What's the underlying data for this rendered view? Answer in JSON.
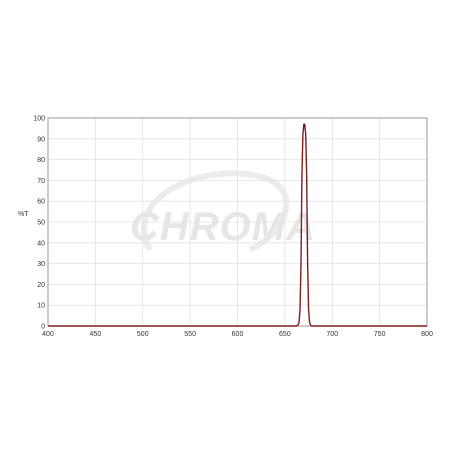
{
  "watermark": {
    "text": "CHROMA"
  },
  "chart_data": {
    "type": "line",
    "title": "",
    "xlabel": "",
    "ylabel": "%T",
    "xlim": [
      400,
      800
    ],
    "ylim": [
      0,
      100
    ],
    "xticks": [
      400,
      450,
      500,
      550,
      600,
      650,
      700,
      750,
      800
    ],
    "yticks": [
      0,
      10,
      20,
      30,
      40,
      50,
      60,
      70,
      80,
      90,
      100
    ],
    "grid": true,
    "legend": "none",
    "series": [
      {
        "color": "#7a1f1f",
        "x": [
          400,
          500,
          600,
          650,
          662,
          664,
          665,
          666,
          667,
          668,
          669,
          670,
          671,
          672,
          673,
          674,
          675,
          676,
          677,
          678,
          680,
          690,
          700,
          800
        ],
        "y": [
          0,
          0,
          0,
          0,
          0,
          0.5,
          2,
          8,
          30,
          72,
          92,
          97,
          97,
          92,
          72,
          30,
          8,
          2,
          0.5,
          0,
          0,
          0,
          0,
          0
        ]
      }
    ]
  }
}
